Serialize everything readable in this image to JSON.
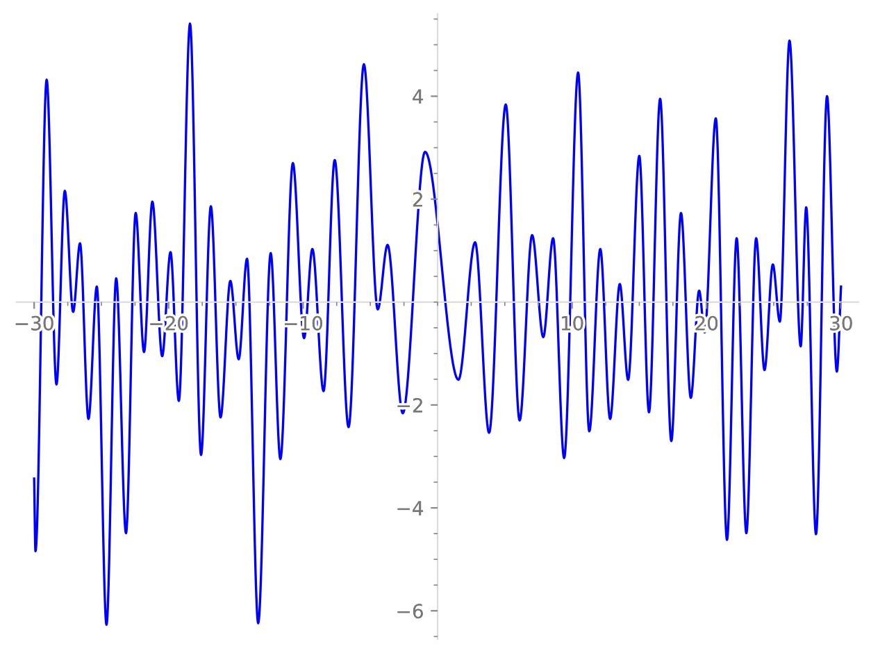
{
  "chart_data": {
    "type": "line",
    "x": [
      -30.0,
      -29.9,
      -29.07,
      -28.34,
      -27.72,
      -27.1,
      -26.59,
      -25.96,
      -25.34,
      -24.62,
      -23.9,
      -23.17,
      -22.45,
      -21.83,
      -21.21,
      -20.48,
      -19.86,
      -19.24,
      -18.41,
      -17.59,
      -16.86,
      -16.14,
      -15.41,
      -14.79,
      -14.17,
      -13.34,
      -12.41,
      -11.69,
      -10.76,
      -9.93,
      -9.31,
      -8.48,
      -7.65,
      -6.62,
      -5.48,
      -4.45,
      -3.72,
      -2.59,
      -0.93,
      1.55,
      2.79,
      3.83,
      5.07,
      6.1,
      7.03,
      7.86,
      8.59,
      9.41,
      10.45,
      11.28,
      12.1,
      12.83,
      13.55,
      14.17,
      15.0,
      15.72,
      16.55,
      17.38,
      18.1,
      18.83,
      19.45,
      19.86,
      20.69,
      21.52,
      22.24,
      22.96,
      23.69,
      24.31,
      24.93,
      25.45,
      26.17,
      27.0,
      27.41,
      28.14,
      28.96,
      29.69,
      30.0
    ],
    "series": [
      {
        "color": "#0000ff",
        "values": [
          -3.43,
          -4.84,
          4.32,
          -1.6,
          2.16,
          -0.19,
          1.14,
          -2.27,
          0.3,
          -6.27,
          0.46,
          -4.49,
          1.73,
          -0.97,
          1.95,
          -1.05,
          0.97,
          -1.92,
          5.41,
          -2.97,
          1.86,
          -2.24,
          0.41,
          -1.11,
          0.84,
          -6.24,
          0.95,
          -3.05,
          2.7,
          -0.7,
          1.03,
          -1.73,
          2.76,
          -2.43,
          4.62,
          -0.14,
          1.11,
          -2.16,
          2.92,
          -1.51,
          1.16,
          -2.54,
          3.84,
          -2.3,
          1.3,
          -0.68,
          1.24,
          -3.03,
          4.46,
          -2.51,
          1.03,
          -2.27,
          0.35,
          -1.51,
          2.84,
          -2.14,
          3.95,
          -2.7,
          1.73,
          -1.86,
          0.22,
          -0.59,
          3.57,
          -4.62,
          1.24,
          -4.49,
          1.24,
          -1.32,
          0.73,
          -0.38,
          5.08,
          -0.86,
          1.84,
          -4.51,
          4.0,
          -1.35,
          0.3
        ]
      }
    ],
    "xlim": [
      -31.3,
      31.3
    ],
    "ylim": [
      -6.55,
      5.6
    ],
    "xticks": [
      {
        "value": -30,
        "label": "−30"
      },
      {
        "value": -20,
        "label": "−20"
      },
      {
        "value": -10,
        "label": "−10"
      },
      10,
      20,
      30
    ],
    "yticks": [
      {
        "value": -6,
        "label": "−6"
      },
      {
        "value": -4,
        "label": "−4"
      },
      {
        "value": -2,
        "label": "−2"
      },
      2,
      4
    ],
    "grid": false,
    "legend": false,
    "marker": "none",
    "line_style": "solid"
  }
}
